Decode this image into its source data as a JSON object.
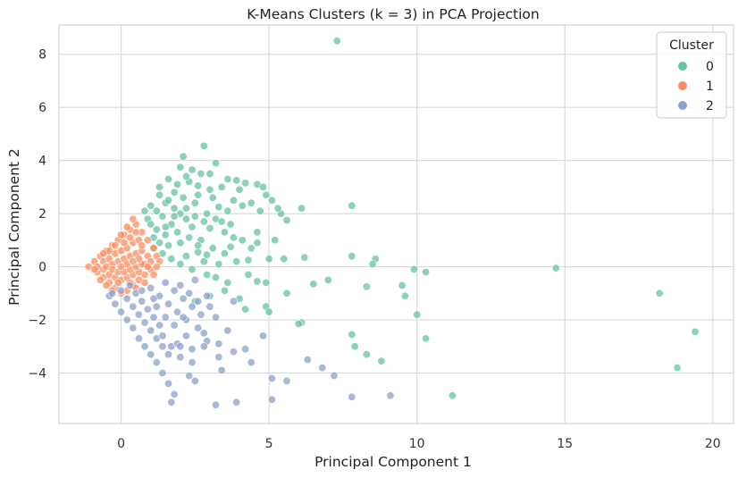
{
  "colors": {
    "cluster_0": "#66c2a5",
    "cluster_1": "#fc8d62",
    "cluster_2": "#8da0cb",
    "grid": "#d9d9d9",
    "frame": "#cccccc"
  },
  "chart_data": {
    "type": "scatter",
    "title": "K-Means Clusters (k = 3) in PCA Projection",
    "xlabel": "Principal Component 1",
    "ylabel": "Principal Component 2",
    "xlim": [
      -2.1,
      20.7
    ],
    "ylim": [
      -5.9,
      9.1
    ],
    "xticks": [
      0,
      5,
      10,
      15,
      20
    ],
    "yticks": [
      -4,
      -2,
      0,
      2,
      4,
      6,
      8
    ],
    "grid": true,
    "legend": {
      "title": "Cluster",
      "placement": "top-right",
      "entries": [
        "0",
        "1",
        "2"
      ]
    },
    "series": [
      {
        "name": "0",
        "color": "#66c2a5",
        "points": [
          [
            7.3,
            8.5
          ],
          [
            2.8,
            4.55
          ],
          [
            2.1,
            4.15
          ],
          [
            3.2,
            3.9
          ],
          [
            2.0,
            3.75
          ],
          [
            2.4,
            3.65
          ],
          [
            2.7,
            3.5
          ],
          [
            3.0,
            3.5
          ],
          [
            3.6,
            3.3
          ],
          [
            3.9,
            3.25
          ],
          [
            4.2,
            3.15
          ],
          [
            4.6,
            3.1
          ],
          [
            4.8,
            3.0
          ],
          [
            2.3,
            3.2
          ],
          [
            2.6,
            3.05
          ],
          [
            3.4,
            3.0
          ],
          [
            4.0,
            2.9
          ],
          [
            1.6,
            3.3
          ],
          [
            1.9,
            3.1
          ],
          [
            5.1,
            2.5
          ],
          [
            4.4,
            2.4
          ],
          [
            4.7,
            2.1
          ],
          [
            5.4,
            2.0
          ],
          [
            6.1,
            2.2
          ],
          [
            7.8,
            2.3
          ],
          [
            3.8,
            2.5
          ],
          [
            3.3,
            2.25
          ],
          [
            2.9,
            2.0
          ],
          [
            2.5,
            1.9
          ],
          [
            3.0,
            1.45
          ],
          [
            3.5,
            1.3
          ],
          [
            4.1,
            1.0
          ],
          [
            4.6,
            0.9
          ],
          [
            5.2,
            1.0
          ],
          [
            5.6,
            1.75
          ],
          [
            3.7,
            0.75
          ],
          [
            3.1,
            0.7
          ],
          [
            2.6,
            0.55
          ],
          [
            2.2,
            0.4
          ],
          [
            2.8,
            0.2
          ],
          [
            3.3,
            0.1
          ],
          [
            3.9,
            0.2
          ],
          [
            4.3,
            0.25
          ],
          [
            5.0,
            0.3
          ],
          [
            5.5,
            0.3
          ],
          [
            6.2,
            0.35
          ],
          [
            7.8,
            0.4
          ],
          [
            8.6,
            0.3
          ],
          [
            8.5,
            0.1
          ],
          [
            9.9,
            -0.1
          ],
          [
            10.3,
            -0.2
          ],
          [
            14.7,
            -0.05
          ],
          [
            4.6,
            -0.55
          ],
          [
            4.9,
            -0.6
          ],
          [
            6.5,
            -0.65
          ],
          [
            7.0,
            -0.5
          ],
          [
            5.6,
            -1.0
          ],
          [
            8.3,
            -0.75
          ],
          [
            9.5,
            -0.7
          ],
          [
            9.6,
            -1.1
          ],
          [
            10.0,
            -1.8
          ],
          [
            3.5,
            -0.9
          ],
          [
            3.0,
            -1.1
          ],
          [
            2.5,
            -1.3
          ],
          [
            4.0,
            -1.2
          ],
          [
            4.2,
            -1.6
          ],
          [
            4.9,
            -1.5
          ],
          [
            5.0,
            -1.7
          ],
          [
            6.1,
            -2.1
          ],
          [
            7.8,
            -2.55
          ],
          [
            10.3,
            -2.7
          ],
          [
            8.3,
            -3.3
          ],
          [
            8.8,
            -3.55
          ],
          [
            11.2,
            -4.85
          ],
          [
            18.2,
            -1.0
          ],
          [
            19.4,
            -2.45
          ],
          [
            18.8,
            -3.8
          ],
          [
            1.3,
            2.7
          ],
          [
            1.5,
            2.4
          ],
          [
            1.8,
            2.2
          ],
          [
            2.0,
            2.0
          ],
          [
            2.2,
            1.8
          ],
          [
            1.4,
            1.9
          ],
          [
            1.7,
            1.6
          ],
          [
            1.2,
            1.4
          ],
          [
            1.5,
            1.2
          ],
          [
            1.9,
            1.3
          ],
          [
            2.4,
            1.5
          ],
          [
            1.1,
            1.1
          ],
          [
            1.3,
            0.9
          ],
          [
            1.6,
            0.8
          ],
          [
            2.0,
            0.9
          ],
          [
            1.0,
            2.3
          ],
          [
            1.2,
            2.1
          ],
          [
            2.6,
            2.7
          ],
          [
            3.1,
            2.6
          ],
          [
            3.6,
            2.1
          ],
          [
            4.1,
            2.3
          ],
          [
            2.1,
            2.6
          ],
          [
            1.8,
            2.8
          ],
          [
            2.3,
            1.1
          ],
          [
            2.7,
            1.0
          ],
          [
            3.2,
            1.8
          ],
          [
            3.7,
            1.6
          ],
          [
            1.4,
            0.5
          ],
          [
            1.7,
            0.3
          ],
          [
            2.0,
            0.1
          ],
          [
            2.4,
            -0.1
          ],
          [
            1.3,
            3.0
          ],
          [
            1.6,
            2.5
          ],
          [
            0.9,
            1.8
          ],
          [
            1.0,
            1.6
          ],
          [
            0.8,
            2.1
          ],
          [
            2.9,
            -0.3
          ],
          [
            3.2,
            -0.4
          ],
          [
            3.6,
            -0.6
          ],
          [
            4.3,
            -0.3
          ],
          [
            4.9,
            2.7
          ],
          [
            3.4,
            1.7
          ],
          [
            2.2,
            2.2
          ],
          [
            2.5,
            2.4
          ],
          [
            2.8,
            1.7
          ],
          [
            3.0,
            2.9
          ],
          [
            2.2,
            3.4
          ],
          [
            1.8,
            1.9
          ],
          [
            2.6,
            0.8
          ],
          [
            3.5,
            0.5
          ],
          [
            4.4,
            0.7
          ],
          [
            1.1,
            0.7
          ],
          [
            1.5,
            1.5
          ],
          [
            2.9,
            0.45
          ],
          [
            3.8,
            1.1
          ],
          [
            4.6,
            1.3
          ],
          [
            5.3,
            2.2
          ],
          [
            6.0,
            -2.15
          ],
          [
            7.9,
            -3.0
          ]
        ]
      },
      {
        "name": "1",
        "color": "#fc8d62",
        "points": [
          [
            -1.1,
            0.0
          ],
          [
            -0.9,
            0.2
          ],
          [
            -0.8,
            -0.2
          ],
          [
            -0.7,
            0.4
          ],
          [
            -0.6,
            -0.4
          ],
          [
            -0.5,
            0.6
          ],
          [
            -0.4,
            -0.6
          ],
          [
            -0.3,
            0.8
          ],
          [
            -0.2,
            -0.8
          ],
          [
            -0.1,
            1.0
          ],
          [
            0.0,
            -1.0
          ],
          [
            0.1,
            1.2
          ],
          [
            0.2,
            -0.9
          ],
          [
            0.3,
            1.4
          ],
          [
            0.4,
            -0.7
          ],
          [
            0.5,
            1.6
          ],
          [
            0.6,
            -0.5
          ],
          [
            0.7,
            1.3
          ],
          [
            0.8,
            -0.3
          ],
          [
            0.9,
            1.0
          ],
          [
            1.0,
            -0.1
          ],
          [
            1.1,
            0.7
          ],
          [
            1.2,
            0.4
          ],
          [
            1.3,
            0.2
          ],
          [
            -0.8,
            0.0
          ],
          [
            -0.6,
            0.2
          ],
          [
            -0.4,
            0.3
          ],
          [
            -0.2,
            0.5
          ],
          [
            0.0,
            0.6
          ],
          [
            0.2,
            0.7
          ],
          [
            0.4,
            0.9
          ],
          [
            0.6,
            1.0
          ],
          [
            -0.6,
            -0.1
          ],
          [
            -0.4,
            -0.3
          ],
          [
            -0.2,
            -0.4
          ],
          [
            0.0,
            -0.5
          ],
          [
            0.2,
            -0.4
          ],
          [
            0.4,
            -0.3
          ],
          [
            0.6,
            -0.2
          ],
          [
            0.8,
            0.1
          ],
          [
            -0.3,
            0.1
          ],
          [
            -0.1,
            0.2
          ],
          [
            0.1,
            0.3
          ],
          [
            0.3,
            0.4
          ],
          [
            0.5,
            0.5
          ],
          [
            0.7,
            0.6
          ],
          [
            0.9,
            0.4
          ],
          [
            1.0,
            0.2
          ],
          [
            -0.5,
            0.0
          ],
          [
            -0.3,
            -0.1
          ],
          [
            -0.1,
            -0.2
          ],
          [
            0.1,
            -0.2
          ],
          [
            0.3,
            -0.1
          ],
          [
            0.5,
            0.0
          ],
          [
            0.7,
            0.1
          ],
          [
            0.9,
            0.0
          ],
          [
            0.0,
            1.2
          ],
          [
            0.2,
            1.5
          ],
          [
            0.4,
            1.8
          ],
          [
            0.1,
            0.9
          ],
          [
            0.3,
            1.1
          ],
          [
            0.5,
            1.3
          ],
          [
            0.7,
            0.8
          ],
          [
            0.2,
            0.1
          ],
          [
            -0.2,
            0.8
          ],
          [
            -0.4,
            0.6
          ],
          [
            -0.6,
            0.5
          ],
          [
            -0.7,
            -0.5
          ],
          [
            -0.5,
            -0.7
          ],
          [
            -0.3,
            -0.9
          ],
          [
            -0.1,
            -0.6
          ],
          [
            0.3,
            -0.6
          ],
          [
            0.5,
            -0.8
          ],
          [
            0.8,
            -0.6
          ],
          [
            1.1,
            -0.3
          ],
          [
            1.2,
            0.0
          ],
          [
            0.6,
            0.3
          ],
          [
            0.4,
            0.2
          ],
          [
            0.0,
            0.0
          ],
          [
            -0.9,
            -0.1
          ]
        ]
      },
      {
        "name": "2",
        "color": "#8da0cb",
        "points": [
          [
            -0.4,
            -1.1
          ],
          [
            -0.2,
            -1.4
          ],
          [
            0.0,
            -1.7
          ],
          [
            0.2,
            -2.0
          ],
          [
            0.4,
            -2.3
          ],
          [
            0.6,
            -2.7
          ],
          [
            0.8,
            -3.0
          ],
          [
            1.0,
            -3.3
          ],
          [
            1.2,
            -3.6
          ],
          [
            1.4,
            -4.0
          ],
          [
            1.6,
            -4.4
          ],
          [
            1.8,
            -4.8
          ],
          [
            1.7,
            -5.1
          ],
          [
            0.2,
            -1.2
          ],
          [
            0.4,
            -1.5
          ],
          [
            0.6,
            -1.8
          ],
          [
            0.8,
            -2.1
          ],
          [
            1.0,
            -2.4
          ],
          [
            1.2,
            -2.7
          ],
          [
            1.4,
            -3.0
          ],
          [
            1.6,
            -3.3
          ],
          [
            0.5,
            -1.0
          ],
          [
            0.7,
            -1.3
          ],
          [
            0.9,
            -1.6
          ],
          [
            1.1,
            -1.9
          ],
          [
            1.3,
            -2.2
          ],
          [
            1.0,
            -0.8
          ],
          [
            1.3,
            -1.1
          ],
          [
            1.6,
            -1.4
          ],
          [
            1.9,
            -1.7
          ],
          [
            2.2,
            -2.0
          ],
          [
            1.5,
            -0.6
          ],
          [
            1.8,
            -0.9
          ],
          [
            2.1,
            -1.2
          ],
          [
            2.4,
            -1.5
          ],
          [
            2.7,
            -1.8
          ],
          [
            2.0,
            -0.7
          ],
          [
            2.3,
            -1.0
          ],
          [
            2.6,
            -1.3
          ],
          [
            3.0,
            -1.5
          ],
          [
            2.5,
            -0.5
          ],
          [
            1.4,
            -2.6
          ],
          [
            1.7,
            -3.0
          ],
          [
            2.0,
            -3.4
          ],
          [
            2.4,
            -3.6
          ],
          [
            2.6,
            -2.3
          ],
          [
            2.9,
            -2.8
          ],
          [
            3.3,
            -3.4
          ],
          [
            3.2,
            -5.2
          ],
          [
            3.9,
            -5.1
          ],
          [
            2.5,
            -4.3
          ],
          [
            2.3,
            -4.1
          ],
          [
            3.4,
            -3.9
          ],
          [
            3.8,
            -3.2
          ],
          [
            4.2,
            -3.1
          ],
          [
            4.4,
            -3.6
          ],
          [
            4.8,
            -2.6
          ],
          [
            5.1,
            -4.2
          ],
          [
            5.6,
            -4.3
          ],
          [
            5.1,
            -5.0
          ],
          [
            6.3,
            -3.5
          ],
          [
            6.8,
            -3.8
          ],
          [
            7.2,
            -4.1
          ],
          [
            7.8,
            -4.9
          ],
          [
            9.1,
            -4.85
          ],
          [
            3.8,
            -1.3
          ],
          [
            3.2,
            -1.9
          ],
          [
            3.6,
            -2.4
          ],
          [
            2.8,
            -2.5
          ],
          [
            2.2,
            -2.6
          ],
          [
            1.9,
            -2.9
          ],
          [
            2.4,
            -3.1
          ],
          [
            1.1,
            -1.2
          ],
          [
            0.3,
            -0.7
          ],
          [
            0.0,
            -0.9
          ],
          [
            -0.3,
            -1.0
          ],
          [
            0.7,
            -0.9
          ],
          [
            1.2,
            -1.5
          ],
          [
            1.5,
            -1.9
          ],
          [
            1.8,
            -2.2
          ],
          [
            2.0,
            -3.0
          ],
          [
            2.8,
            -3.0
          ],
          [
            2.1,
            -1.9
          ],
          [
            2.9,
            -1.1
          ],
          [
            3.3,
            -2.9
          ]
        ]
      }
    ]
  }
}
